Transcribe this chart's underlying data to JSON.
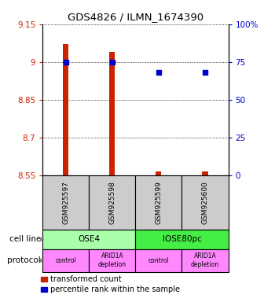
{
  "title": "GDS4826 / ILMN_1674390",
  "samples": [
    "GSM925597",
    "GSM925598",
    "GSM925599",
    "GSM925600"
  ],
  "transformed_counts": [
    9.07,
    9.04,
    8.565,
    8.565
  ],
  "percentile_ranks": [
    75,
    75,
    68,
    68
  ],
  "ylim_left": [
    8.55,
    9.15
  ],
  "ylim_right": [
    0,
    100
  ],
  "yticks_left": [
    8.55,
    8.7,
    8.85,
    9.0,
    9.15
  ],
  "yticks_right": [
    0,
    25,
    50,
    75,
    100
  ],
  "ytick_labels_left": [
    "8.55",
    "8.7",
    "8.85",
    "9",
    "9.15"
  ],
  "ytick_labels_right": [
    "0",
    "25",
    "50",
    "75",
    "100%"
  ],
  "cell_line_groups": [
    {
      "label": "OSE4",
      "cols": [
        0,
        1
      ],
      "color": "#aaffaa"
    },
    {
      "label": "IOSE80pc",
      "cols": [
        2,
        3
      ],
      "color": "#44ee44"
    }
  ],
  "protocols": [
    "control",
    "ARID1A\ndepletion",
    "control",
    "ARID1A\ndepletion"
  ],
  "protocol_color": "#ff88ff",
  "bar_color": "#cc2200",
  "dot_color": "#0000cc",
  "tick_color_left": "#cc2200",
  "tick_color_right": "#0000cc",
  "sample_box_color": "#cccccc",
  "legend_red_label": "transformed count",
  "legend_blue_label": "percentile rank within the sample",
  "cell_line_label": "cell line",
  "protocol_label": "protocol",
  "bar_width": 0.12
}
